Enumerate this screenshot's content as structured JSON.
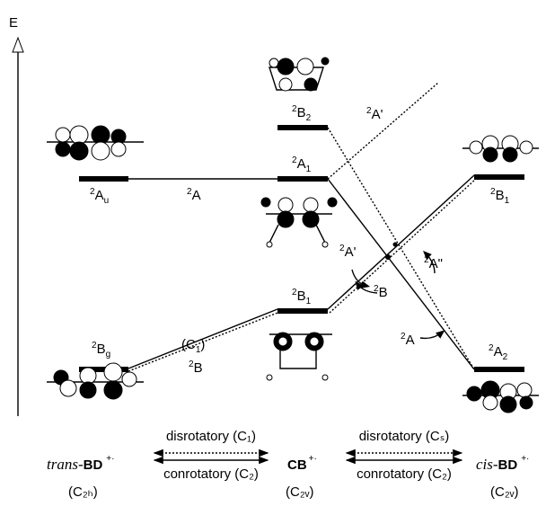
{
  "axis_label": "E",
  "levels": [
    {
      "sup": "2",
      "main": "A",
      "sub": "u"
    },
    {
      "sup": "2",
      "main": "B",
      "sub": "2"
    },
    {
      "sup": "2",
      "main": "A",
      "sub": "1"
    },
    {
      "sup": "2",
      "main": "B",
      "sub": "1"
    },
    {
      "sup": "2",
      "main": "B",
      "sub": "1"
    },
    {
      "sup": "2",
      "main": "B",
      "sub": "g"
    },
    {
      "sup": "2",
      "main": "A",
      "sub": "2"
    }
  ],
  "state_labels": [
    {
      "sup": "2",
      "main": "A"
    },
    {
      "sup": "2",
      "main": "A'"
    },
    {
      "sup": "2",
      "main": "A'"
    },
    {
      "sup": "2",
      "main": "B"
    },
    {
      "sup": "2",
      "main": "A\""
    },
    {
      "sup": "2",
      "main": "A"
    },
    {
      "sup": "2",
      "main": "B"
    }
  ],
  "path_label": {
    "main": "(C",
    "sub": "1",
    "end": ")"
  },
  "captions": {
    "left": {
      "prefix": "trans-",
      "main": "BD",
      "sup": "+·",
      "sym": "(C₂ₕ)"
    },
    "center": {
      "main": "CB",
      "sup": "+·",
      "sym": "(C₂ᵥ)"
    },
    "right": {
      "prefix": "cis-",
      "main": "BD",
      "sup": "+·",
      "sym": "(C₂ᵥ)"
    },
    "arrows_left": {
      "top": "disrotatory (C₁)",
      "bottom": "conrotatory (C₂)"
    },
    "arrows_right": {
      "top": "disrotatory (Cₛ)",
      "bottom": "conrotatory (C₂)"
    }
  }
}
